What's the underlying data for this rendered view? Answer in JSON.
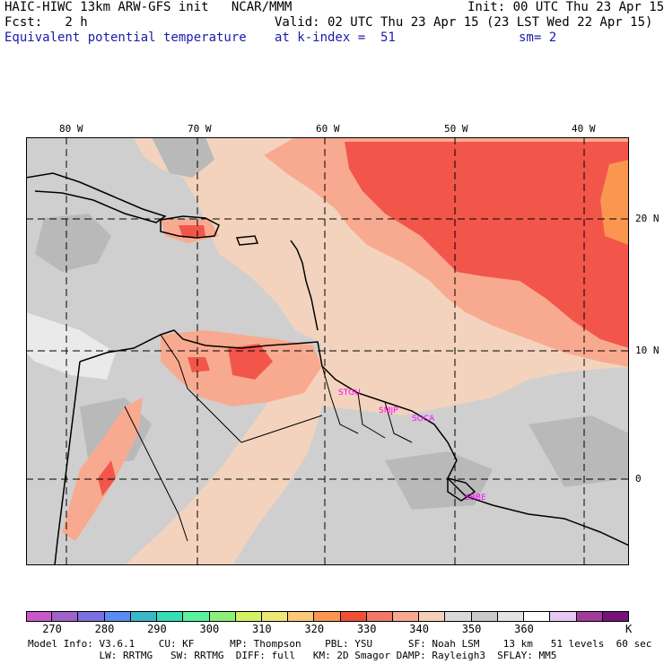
{
  "header": {
    "model_line": "HAIC-HIWC 13km ARW-GFS init   NCAR/MMM",
    "init_line": "Init: 00 UTC Thu 23 Apr 15",
    "fcst_line": "Fcst:   2 h",
    "valid_line": "Valid: 02 UTC Thu 23 Apr 15 (23 LST Wed 22 Apr 15)",
    "field_name": "Equivalent potential temperature",
    "level_line": "at k-index =  51",
    "smooth_line": "sm= 2"
  },
  "map": {
    "lon_labels": [
      "80 W",
      "70 W",
      "60 W",
      "50 W",
      "40 W"
    ],
    "lat_labels": [
      "20 N",
      "10 N",
      "0"
    ],
    "stations": [
      "STGU",
      "SMJP",
      "SOCA",
      "SBBE"
    ]
  },
  "colorbar": {
    "colors": [
      "#c85ac8",
      "#a064c8",
      "#7a70e0",
      "#5a8cf0",
      "#3ab8c8",
      "#36dcb4",
      "#5af0a0",
      "#8cf078",
      "#d2f064",
      "#f0e678",
      "#fac878",
      "#fa9650",
      "#f05038",
      "#f07868",
      "#f8a890",
      "#f3d0b8",
      "#d9d9d9",
      "#c9c9c9",
      "#e4e4e4",
      "#ffffff",
      "#e6c8f0",
      "#a03c9c",
      "#781478"
    ],
    "tick_labels": [
      "270",
      "280",
      "290",
      "300",
      "310",
      "320",
      "330",
      "340",
      "350",
      "360"
    ],
    "unit": "K"
  },
  "footer": {
    "line1": "Model Info: V3.6.1    CU: KF      MP: Thompson    PBL: YSU      SF: Noah LSM    13 km   51 levels  60 sec",
    "line2": "            LW: RRTMG   SW: RRTMG  DIFF: full   KM: 2D Smagor DAMP: Rayleigh3  SFLAY: MM5"
  },
  "colors": {
    "field_high": "#f2564a",
    "field_mid": "#f8aa90",
    "field_low": "#f3d3bd",
    "field_cool": "#cfcfcf",
    "field_cooler": "#b9b9b9"
  }
}
